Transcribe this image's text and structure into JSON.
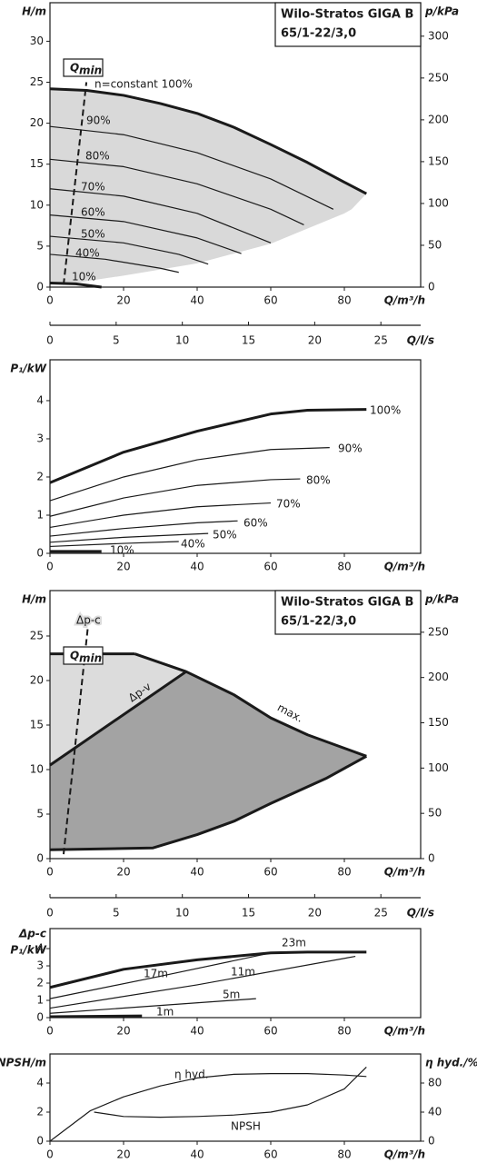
{
  "chart_data": [
    {
      "type": "line",
      "title": [
        "Wilo-Stratos GIGA B",
        "65/1-22/3,0"
      ],
      "ylabel": "H/m",
      "y2label": "p/kPa",
      "xlabel": "Q/m³/h",
      "xlim": [
        0,
        100
      ],
      "xticks": [
        0,
        20,
        40,
        60,
        80
      ],
      "ylim": [
        0,
        34.7
      ],
      "yticks": [
        0,
        5,
        10,
        15,
        20,
        25,
        30
      ],
      "y2lim": [
        0,
        340
      ],
      "y2ticks": [
        0,
        50,
        100,
        150,
        200,
        250,
        300
      ],
      "regions": [
        {
          "color": "#d9d9d9",
          "x": [
            0,
            10,
            20,
            30,
            40,
            50,
            60,
            70,
            80,
            86,
            82,
            80,
            60,
            40,
            20,
            5,
            0
          ],
          "y": [
            24.2,
            24.0,
            23.4,
            22.4,
            21.2,
            19.5,
            17.4,
            15.2,
            12.8,
            11.4,
            9.5,
            9.0,
            5.3,
            2.9,
            1.4,
            0.4,
            0.4
          ]
        }
      ],
      "curves": [
        {
          "label": "n=constant 100%",
          "bold": true,
          "x": [
            0,
            10,
            20,
            30,
            40,
            50,
            60,
            70,
            80,
            86
          ],
          "values": [
            24.2,
            24.0,
            23.4,
            22.4,
            21.2,
            19.5,
            17.4,
            15.2,
            12.8,
            11.4
          ]
        },
        {
          "label": "90%",
          "x": [
            0,
            20,
            40,
            60,
            77
          ],
          "values": [
            19.6,
            18.6,
            16.4,
            13.2,
            9.5
          ]
        },
        {
          "label": "80%",
          "x": [
            0,
            20,
            40,
            60,
            69
          ],
          "values": [
            15.6,
            14.7,
            12.6,
            9.5,
            7.6
          ]
        },
        {
          "label": "70%",
          "x": [
            0,
            20,
            40,
            60
          ],
          "values": [
            12.0,
            11.1,
            9.0,
            5.4
          ]
        },
        {
          "label": "60%",
          "x": [
            0,
            20,
            40,
            52
          ],
          "values": [
            8.8,
            8.0,
            6.0,
            4.1
          ]
        },
        {
          "label": "50%",
          "x": [
            0,
            20,
            35,
            43
          ],
          "values": [
            6.2,
            5.4,
            4.0,
            2.8
          ]
        },
        {
          "label": "40%",
          "x": [
            0,
            15,
            30,
            35
          ],
          "values": [
            4.0,
            3.4,
            2.3,
            1.8
          ]
        },
        {
          "label": "10%",
          "bold": true,
          "x": [
            0,
            7,
            14
          ],
          "values": [
            0.5,
            0.4,
            0.0
          ]
        }
      ],
      "qmin": {
        "label": {
          "main": "Q",
          "sub": "min"
        },
        "x": [
          3.7,
          9.9
        ],
        "values": [
          0.3,
          25
        ]
      },
      "x2": {
        "label": "Q/l/s",
        "xlim": [
          0,
          27.8
        ],
        "xticks": [
          0,
          5,
          10,
          15,
          20,
          25
        ]
      }
    },
    {
      "type": "line",
      "ylabel": "P₁/kW",
      "xlabel": "Q/m³/h",
      "xlim": [
        0,
        100
      ],
      "xticks": [
        0,
        20,
        40,
        60,
        80
      ],
      "ylim": [
        0,
        5.07
      ],
      "yticks": [
        0,
        1,
        2,
        3,
        4
      ],
      "curves": [
        {
          "label": "100%",
          "bold": true,
          "x": [
            0,
            20,
            40,
            60,
            70,
            86
          ],
          "values": [
            1.85,
            2.65,
            3.2,
            3.65,
            3.75,
            3.77
          ]
        },
        {
          "label": "90%",
          "x": [
            0,
            20,
            40,
            60,
            76
          ],
          "values": [
            1.38,
            2.0,
            2.45,
            2.72,
            2.77
          ]
        },
        {
          "label": "80%",
          "x": [
            0,
            20,
            40,
            60,
            68
          ],
          "values": [
            0.97,
            1.45,
            1.78,
            1.93,
            1.95
          ]
        },
        {
          "label": "70%",
          "x": [
            0,
            20,
            40,
            60
          ],
          "values": [
            0.68,
            1.0,
            1.22,
            1.32
          ]
        },
        {
          "label": "60%",
          "x": [
            0,
            20,
            40,
            51
          ],
          "values": [
            0.45,
            0.65,
            0.8,
            0.85
          ]
        },
        {
          "label": "50%",
          "x": [
            0,
            20,
            43
          ],
          "values": [
            0.29,
            0.42,
            0.52
          ]
        },
        {
          "label": "40%",
          "x": [
            0,
            20,
            35
          ],
          "values": [
            0.18,
            0.26,
            0.31
          ]
        },
        {
          "label": "10%",
          "bold": true,
          "x": [
            0,
            14
          ],
          "values": [
            0.05,
            0.05
          ]
        }
      ]
    },
    {
      "type": "line",
      "title": [
        "Wilo-Stratos GIGA B",
        "65/1-22/3,0"
      ],
      "ylabel": "H/m",
      "y2label": "p/kPa",
      "xlabel": "Q/m³/h",
      "xlim": [
        0,
        100
      ],
      "xticks": [
        0,
        20,
        40,
        60,
        80
      ],
      "ylim": [
        0,
        30.1
      ],
      "yticks": [
        0,
        5,
        10,
        15,
        20,
        25
      ],
      "y2lim": [
        0,
        296
      ],
      "y2ticks": [
        0,
        50,
        100,
        150,
        200,
        250
      ],
      "regions": [
        {
          "color": "#dcdcdc",
          "x": [
            0,
            23,
            37,
            0
          ],
          "y": [
            23,
            23,
            21,
            10.5
          ]
        },
        {
          "color": "#a3a3a3",
          "x": [
            0,
            37,
            50,
            60,
            70,
            86,
            75,
            60,
            50,
            40,
            28,
            0
          ],
          "y": [
            10.5,
            21,
            18.4,
            15.8,
            13.9,
            11.5,
            9.0,
            6.2,
            4.2,
            2.7,
            1.2,
            1.0
          ]
        }
      ],
      "curves": [
        {
          "label": "Δp-c",
          "bold": true,
          "x": [
            0,
            23
          ],
          "values": [
            23,
            23
          ]
        },
        {
          "label": "Δp-v",
          "bold": true,
          "x": [
            0,
            37
          ],
          "values": [
            10.5,
            21
          ]
        },
        {
          "label": "max.",
          "bold": true,
          "x": [
            23,
            37,
            50,
            60,
            70,
            86
          ],
          "values": [
            23,
            21,
            18.4,
            15.8,
            13.9,
            11.5
          ]
        },
        {
          "bold": true,
          "x": [
            0,
            28,
            40,
            50,
            60,
            75,
            86
          ],
          "values": [
            1.0,
            1.2,
            2.7,
            4.2,
            6.2,
            9.0,
            11.5
          ]
        }
      ],
      "qmin": {
        "label": {
          "main": "Q",
          "sub": "min"
        },
        "x": [
          3.7,
          10.3
        ],
        "values": [
          0.5,
          26
        ]
      },
      "x2": {
        "label": "Q/l/s",
        "xlim": [
          0,
          27.8
        ],
        "xticks": [
          0,
          5,
          10,
          15,
          20,
          25
        ]
      }
    },
    {
      "type": "line",
      "ylabel_top": "Δp-c",
      "ylabel": "P₁/kW",
      "xlabel": "Q/m³/h",
      "xlim": [
        0,
        100
      ],
      "xticks": [
        0,
        20,
        40,
        60,
        80
      ],
      "ylim": [
        0,
        5.16
      ],
      "yticks": [
        0,
        1,
        2,
        3,
        4
      ],
      "curves": [
        {
          "label": "23m",
          "bold": true,
          "x": [
            0,
            20,
            40,
            60,
            70,
            86
          ],
          "values": [
            1.75,
            2.8,
            3.35,
            3.75,
            3.8,
            3.8
          ]
        },
        {
          "label": "17m",
          "x": [
            0,
            30,
            60
          ],
          "values": [
            1.1,
            2.4,
            3.75
          ]
        },
        {
          "label": "11m",
          "x": [
            0,
            40,
            83
          ],
          "values": [
            0.55,
            1.9,
            3.55
          ]
        },
        {
          "label": "5m",
          "x": [
            0,
            56
          ],
          "values": [
            0.25,
            1.1
          ]
        },
        {
          "label": "1m",
          "bold": true,
          "x": [
            0,
            25
          ],
          "values": [
            0.05,
            0.1
          ]
        }
      ]
    },
    {
      "type": "line",
      "ylabel": "NPSH/m",
      "y2label": "η hyd./%",
      "xlabel": "Q/m³/h",
      "xlim": [
        0,
        100
      ],
      "xticks": [
        0,
        20,
        40,
        60,
        80
      ],
      "ylim": [
        0,
        6
      ],
      "yticks": [
        0,
        2,
        4
      ],
      "y2lim": [
        0,
        120
      ],
      "y2ticks": [
        0,
        40,
        80
      ],
      "curves": [
        {
          "label": "η hyd.",
          "axis": "y2",
          "x": [
            0,
            11,
            20,
            30,
            40,
            50,
            60,
            70,
            80,
            86
          ],
          "values": [
            0,
            42,
            61,
            76,
            87,
            92,
            93,
            93,
            91,
            89
          ]
        },
        {
          "label": "NPSH",
          "x": [
            12,
            20,
            30,
            40,
            50,
            60,
            70,
            80,
            86
          ],
          "values": [
            2.0,
            1.7,
            1.65,
            1.7,
            1.8,
            2.0,
            2.5,
            3.6,
            5.1
          ]
        }
      ]
    }
  ]
}
